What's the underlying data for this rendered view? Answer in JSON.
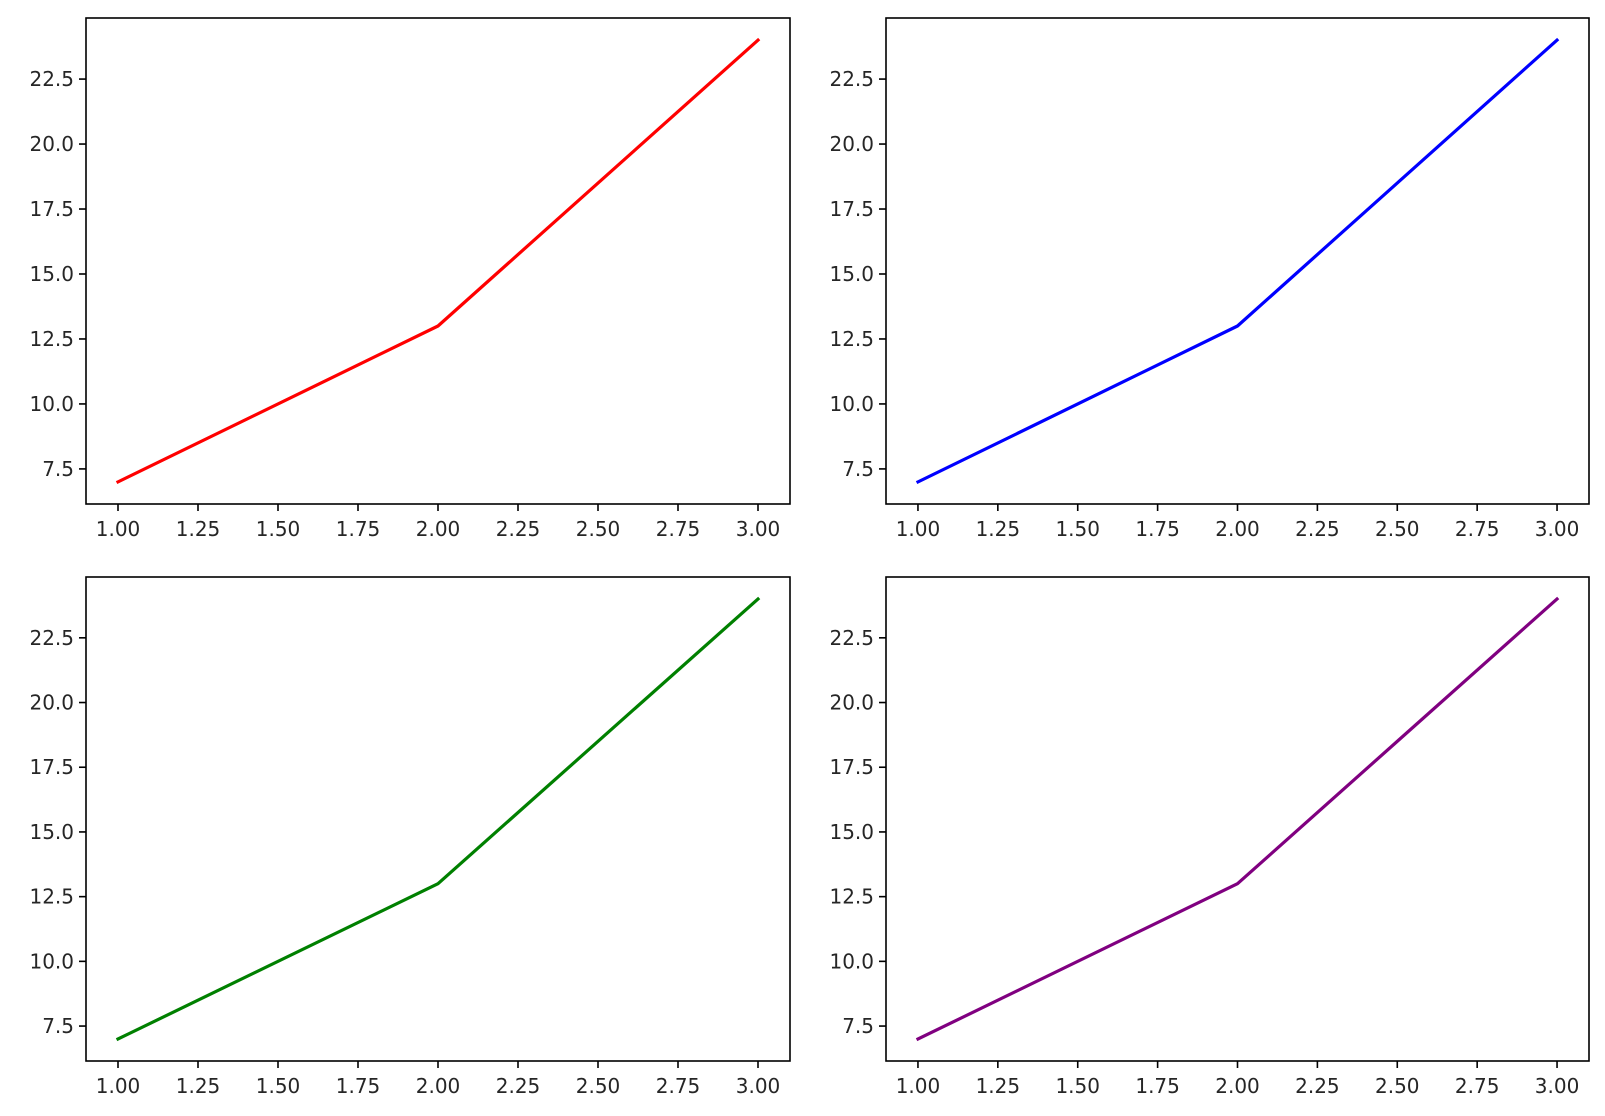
{
  "chart_data": [
    {
      "type": "line",
      "title": "",
      "xlabel": "",
      "ylabel": "",
      "grid": false,
      "color": "#ff0000",
      "x": [
        1,
        2,
        3
      ],
      "y": [
        7,
        13,
        24
      ],
      "xlim": [
        0.9,
        3.1
      ],
      "ylim": [
        6.15,
        24.85
      ],
      "xticks": [
        1.0,
        1.25,
        1.5,
        1.75,
        2.0,
        2.25,
        2.5,
        2.75,
        3.0
      ],
      "xtick_labels": [
        "1.00",
        "1.25",
        "1.50",
        "1.75",
        "2.00",
        "2.25",
        "2.50",
        "2.75",
        "3.00"
      ],
      "yticks": [
        7.5,
        10.0,
        12.5,
        15.0,
        17.5,
        20.0,
        22.5
      ],
      "ytick_labels": [
        "7.5",
        "10.0",
        "12.5",
        "15.0",
        "17.5",
        "20.0",
        "22.5"
      ]
    },
    {
      "type": "line",
      "title": "",
      "xlabel": "",
      "ylabel": "",
      "grid": false,
      "color": "#0000ff",
      "x": [
        1,
        2,
        3
      ],
      "y": [
        7,
        13,
        24
      ],
      "xlim": [
        0.9,
        3.1
      ],
      "ylim": [
        6.15,
        24.85
      ],
      "xticks": [
        1.0,
        1.25,
        1.5,
        1.75,
        2.0,
        2.25,
        2.5,
        2.75,
        3.0
      ],
      "xtick_labels": [
        "1.00",
        "1.25",
        "1.50",
        "1.75",
        "2.00",
        "2.25",
        "2.50",
        "2.75",
        "3.00"
      ],
      "yticks": [
        7.5,
        10.0,
        12.5,
        15.0,
        17.5,
        20.0,
        22.5
      ],
      "ytick_labels": [
        "7.5",
        "10.0",
        "12.5",
        "15.0",
        "17.5",
        "20.0",
        "22.5"
      ]
    },
    {
      "type": "line",
      "title": "",
      "xlabel": "",
      "ylabel": "",
      "grid": false,
      "color": "#008000",
      "x": [
        1,
        2,
        3
      ],
      "y": [
        7,
        13,
        24
      ],
      "xlim": [
        0.9,
        3.1
      ],
      "ylim": [
        6.15,
        24.85
      ],
      "xticks": [
        1.0,
        1.25,
        1.5,
        1.75,
        2.0,
        2.25,
        2.5,
        2.75,
        3.0
      ],
      "xtick_labels": [
        "1.00",
        "1.25",
        "1.50",
        "1.75",
        "2.00",
        "2.25",
        "2.50",
        "2.75",
        "3.00"
      ],
      "yticks": [
        7.5,
        10.0,
        12.5,
        15.0,
        17.5,
        20.0,
        22.5
      ],
      "ytick_labels": [
        "7.5",
        "10.0",
        "12.5",
        "15.0",
        "17.5",
        "20.0",
        "22.5"
      ]
    },
    {
      "type": "line",
      "title": "",
      "xlabel": "",
      "ylabel": "",
      "grid": false,
      "color": "#800080",
      "x": [
        1,
        2,
        3
      ],
      "y": [
        7,
        13,
        24
      ],
      "xlim": [
        0.9,
        3.1
      ],
      "ylim": [
        6.15,
        24.85
      ],
      "xticks": [
        1.0,
        1.25,
        1.5,
        1.75,
        2.0,
        2.25,
        2.5,
        2.75,
        3.0
      ],
      "xtick_labels": [
        "1.00",
        "1.25",
        "1.50",
        "1.75",
        "2.00",
        "2.25",
        "2.50",
        "2.75",
        "3.00"
      ],
      "yticks": [
        7.5,
        10.0,
        12.5,
        15.0,
        17.5,
        20.0,
        22.5
      ],
      "ytick_labels": [
        "7.5",
        "10.0",
        "12.5",
        "15.0",
        "17.5",
        "20.0",
        "22.5"
      ]
    }
  ]
}
